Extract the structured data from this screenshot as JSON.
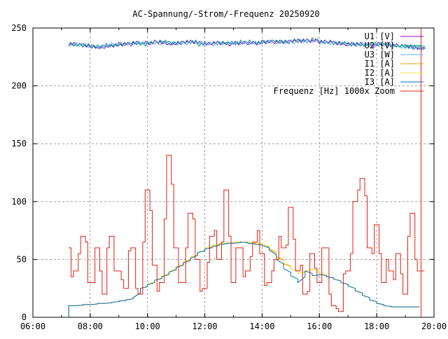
{
  "chart_data": {
    "type": "line",
    "title": "AC-Spannung/-Strom/-Frequenz 20250920",
    "xlabel": "",
    "ylabel": "",
    "xlim": [
      6,
      20
    ],
    "ylim": [
      0,
      250
    ],
    "grid": true,
    "legend_position": "top-right",
    "x_ticks": [
      {
        "value": 6,
        "label": "06:00"
      },
      {
        "value": 8,
        "label": "08:00"
      },
      {
        "value": 10,
        "label": "10:00"
      },
      {
        "value": 12,
        "label": "12:00"
      },
      {
        "value": 14,
        "label": "14:00"
      },
      {
        "value": 16,
        "label": "16:00"
      },
      {
        "value": 18,
        "label": "18:00"
      },
      {
        "value": 20,
        "label": "20:00"
      }
    ],
    "y_ticks": [
      {
        "value": 0,
        "label": "0"
      },
      {
        "value": 50,
        "label": "50"
      },
      {
        "value": 100,
        "label": "100"
      },
      {
        "value": 150,
        "label": "150"
      },
      {
        "value": 200,
        "label": "200"
      },
      {
        "value": 250,
        "label": "250"
      }
    ],
    "x_start": 7.25,
    "x_step": 0.25,
    "series": [
      {
        "name": "U1 [V]",
        "color": "#9400d3",
        "values": [
          236,
          236,
          235,
          234,
          233,
          234,
          235,
          236,
          236,
          237,
          237,
          237,
          238,
          237,
          236,
          237,
          238,
          238,
          237,
          236,
          237,
          237,
          236,
          237,
          237,
          237,
          237,
          238,
          238,
          238,
          238,
          239,
          239,
          239,
          239,
          238,
          238,
          237,
          236,
          236,
          236,
          236,
          235,
          236,
          236,
          235,
          235,
          234,
          233,
          232
        ]
      },
      {
        "name": "U2 [V]",
        "color": "#009e73",
        "values": [
          236,
          235,
          235,
          234,
          234,
          235,
          235,
          236,
          237,
          237,
          236,
          237,
          238,
          238,
          237,
          237,
          238,
          238,
          236,
          237,
          237,
          237,
          237,
          237,
          238,
          238,
          237,
          238,
          239,
          238,
          238,
          239,
          239,
          239,
          240,
          238,
          238,
          237,
          237,
          236,
          236,
          235,
          236,
          236,
          235,
          235,
          234,
          234,
          233,
          233
        ]
      },
      {
        "name": "U3 [W]",
        "color": "#56b4e9",
        "values": [
          236,
          236,
          235,
          234,
          234,
          235,
          236,
          236,
          236,
          237,
          237,
          237,
          237,
          238,
          237,
          237,
          237,
          238,
          237,
          236,
          236,
          237,
          237,
          237,
          237,
          237,
          237,
          238,
          238,
          238,
          238,
          238,
          239,
          238,
          239,
          238,
          237,
          237,
          237,
          236,
          236,
          236,
          235,
          236,
          236,
          235,
          234,
          234,
          234,
          233
        ]
      },
      {
        "name": "I1 [A]",
        "color": "#e69f00",
        "values": [
          10,
          10,
          11,
          11,
          12,
          12,
          13,
          14,
          15,
          17,
          25,
          28,
          32,
          35,
          39,
          43,
          47,
          52,
          56,
          59,
          62,
          63,
          64,
          64,
          65,
          65,
          64,
          63,
          59,
          52,
          46,
          42,
          38,
          40,
          42,
          38,
          35,
          33,
          30,
          27,
          23,
          19,
          15,
          12,
          10,
          9,
          9,
          9,
          9,
          9
        ]
      },
      {
        "name": "I2 [A]",
        "color": "#f0e442",
        "values": [
          10,
          10,
          11,
          11,
          12,
          12,
          13,
          14,
          15,
          17,
          25,
          29,
          32,
          36,
          40,
          44,
          48,
          52,
          56,
          60,
          62,
          64,
          64,
          65,
          65,
          65,
          64,
          63,
          60,
          53,
          47,
          42,
          38,
          40,
          42,
          38,
          35,
          33,
          30,
          27,
          23,
          19,
          15,
          12,
          10,
          9,
          9,
          9,
          9,
          9
        ]
      },
      {
        "name": "I3 [A]",
        "color": "#0072b2",
        "values": [
          10,
          10,
          11,
          11,
          12,
          12,
          13,
          14,
          15,
          17,
          25,
          28,
          32,
          35,
          39,
          43,
          47,
          51,
          56,
          59,
          61,
          63,
          64,
          64,
          65,
          64,
          63,
          62,
          58,
          50,
          42,
          36,
          30,
          40,
          36,
          37,
          35,
          33,
          30,
          27,
          23,
          19,
          15,
          12,
          10,
          9,
          9,
          9,
          9,
          9
        ]
      },
      {
        "name": "Frequenz [Hz] 1000x Zoom",
        "color": "#e51e10",
        "values": [
          60,
          40,
          70,
          30,
          60,
          20,
          70,
          40,
          25,
          60,
          20,
          110,
          45,
          30,
          140,
          60,
          30,
          90,
          50,
          25,
          70,
          50,
          110,
          30,
          60,
          40,
          65,
          55,
          30,
          50,
          60,
          95,
          40,
          20,
          55,
          30,
          60,
          10,
          5,
          40,
          100,
          120,
          60,
          80,
          30,
          40,
          55,
          20,
          90,
          40
        ]
      }
    ]
  }
}
